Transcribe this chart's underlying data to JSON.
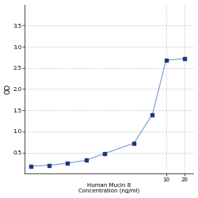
{
  "x": [
    0.0625,
    0.125,
    0.25,
    0.5,
    1.0,
    3.0,
    6.0,
    10.0,
    20.0
  ],
  "y": [
    0.18,
    0.2,
    0.25,
    0.32,
    0.48,
    0.72,
    1.4,
    2.68,
    2.72
  ],
  "xlabel_line1": "Human Mucin 8",
  "xlabel_line2": "Concentration (ng/ml)",
  "ylabel": "OD",
  "xlim_log": [
    -1.3,
    1.45
  ],
  "ylim": [
    0.0,
    4.0
  ],
  "yticks": [
    0.5,
    1.0,
    1.5,
    2.0,
    2.5,
    3.0,
    3.5
  ],
  "xtick_vals": [
    10,
    20
  ],
  "xtick_labels": [
    "10",
    "20"
  ],
  "line_color": "#7799cc",
  "marker_color": "#1a3a7a",
  "bg_color": "#ffffff",
  "grid_color": "#cccccc",
  "tick_fontsize": 5,
  "label_fontsize": 5
}
